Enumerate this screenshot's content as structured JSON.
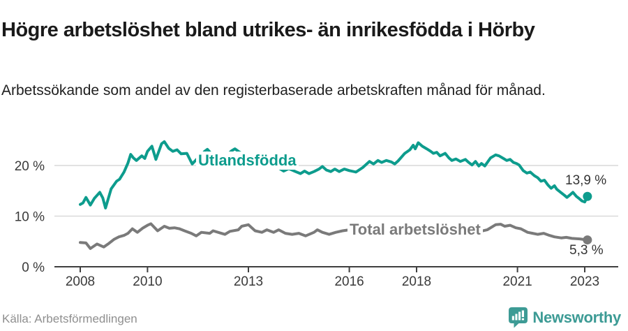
{
  "header": {
    "title": "Högre arbetslöshet bland utrikes- än inrikesfödda i Hörby",
    "subtitle": "Arbetssökande som andel av den registerbaserade arbetskraften månad för månad."
  },
  "footer": {
    "source": "Källa: Arbetsförmedlingen",
    "brand": "Newsworthy"
  },
  "colors": {
    "foreign_series": "#0d9c8d",
    "total_series": "#7a7a7a",
    "brand_teal": "#3d9b95",
    "grid": "#d9d9d9",
    "axis": "#3f3f3f",
    "tick_label": "#3a3a3a",
    "value_label": "#333333",
    "source_text": "#8f8f8f"
  },
  "chart_data": {
    "type": "line",
    "unit": "% av registerbaserad arbetskraft",
    "x_axis": {
      "range": [
        2007.25,
        2023.75
      ],
      "ticks": [
        {
          "value": 2008,
          "label": "2008"
        },
        {
          "value": 2010,
          "label": "2010"
        },
        {
          "value": 2013,
          "label": "2013"
        },
        {
          "value": 2016,
          "label": "2016"
        },
        {
          "value": 2018,
          "label": "2018"
        },
        {
          "value": 2021,
          "label": "2021"
        },
        {
          "value": 2023,
          "label": "2023"
        }
      ]
    },
    "y_axis": {
      "range": [
        0,
        26.5
      ],
      "ticks": [
        {
          "value": 0,
          "label": "0 %"
        },
        {
          "value": 10,
          "label": "10 %"
        },
        {
          "value": 20,
          "label": "20 %"
        }
      ]
    },
    "series": [
      {
        "name": "Utlandsfödda",
        "color": "#0d9c8d",
        "end_label": "13,9 %",
        "end_value": 13.9,
        "points": [
          [
            2008.0,
            12.3
          ],
          [
            2008.08,
            12.6
          ],
          [
            2008.17,
            13.7
          ],
          [
            2008.3,
            12.2
          ],
          [
            2008.42,
            13.5
          ],
          [
            2008.58,
            14.7
          ],
          [
            2008.67,
            13.6
          ],
          [
            2008.75,
            11.6
          ],
          [
            2008.92,
            15.4
          ],
          [
            2009.08,
            16.9
          ],
          [
            2009.17,
            17.3
          ],
          [
            2009.3,
            18.7
          ],
          [
            2009.42,
            20.5
          ],
          [
            2009.5,
            22.2
          ],
          [
            2009.58,
            21.5
          ],
          [
            2009.67,
            21.0
          ],
          [
            2009.83,
            21.9
          ],
          [
            2009.92,
            21.4
          ],
          [
            2010.0,
            22.8
          ],
          [
            2010.13,
            23.8
          ],
          [
            2010.25,
            21.2
          ],
          [
            2010.42,
            24.3
          ],
          [
            2010.5,
            24.7
          ],
          [
            2010.63,
            23.4
          ],
          [
            2010.75,
            22.8
          ],
          [
            2010.88,
            23.1
          ],
          [
            2011.0,
            22.3
          ],
          [
            2011.17,
            22.4
          ],
          [
            2011.33,
            20.3
          ],
          [
            2011.5,
            21.5
          ],
          [
            2011.6,
            22.0
          ],
          [
            2011.7,
            22.8
          ],
          [
            2011.78,
            23.2
          ],
          [
            2011.9,
            22.3
          ],
          [
            2012.05,
            21.9
          ],
          [
            2012.2,
            22.3
          ],
          [
            2012.35,
            22.0
          ],
          [
            2012.5,
            22.9
          ],
          [
            2012.6,
            23.3
          ],
          [
            2012.72,
            22.7
          ],
          [
            2012.85,
            22.2
          ],
          [
            2013.0,
            21.8
          ],
          [
            2013.15,
            21.3
          ],
          [
            2013.3,
            21.0
          ],
          [
            2013.5,
            20.4
          ],
          [
            2013.7,
            19.9
          ],
          [
            2013.9,
            19.5
          ],
          [
            2014.05,
            18.9
          ],
          [
            2014.2,
            19.4
          ],
          [
            2014.4,
            18.8
          ],
          [
            2014.55,
            18.4
          ],
          [
            2014.67,
            18.9
          ],
          [
            2014.8,
            18.4
          ],
          [
            2014.95,
            18.8
          ],
          [
            2015.1,
            19.3
          ],
          [
            2015.2,
            19.8
          ],
          [
            2015.32,
            19.1
          ],
          [
            2015.45,
            18.8
          ],
          [
            2015.57,
            19.3
          ],
          [
            2015.7,
            18.8
          ],
          [
            2015.85,
            19.3
          ],
          [
            2016.0,
            19.0
          ],
          [
            2016.2,
            18.7
          ],
          [
            2016.4,
            19.6
          ],
          [
            2016.6,
            20.8
          ],
          [
            2016.72,
            20.3
          ],
          [
            2016.85,
            21.0
          ],
          [
            2016.96,
            20.6
          ],
          [
            2017.1,
            21.0
          ],
          [
            2017.25,
            20.7
          ],
          [
            2017.35,
            20.3
          ],
          [
            2017.45,
            20.9
          ],
          [
            2017.65,
            22.4
          ],
          [
            2017.8,
            23.1
          ],
          [
            2017.9,
            24.0
          ],
          [
            2017.96,
            23.3
          ],
          [
            2018.05,
            24.5
          ],
          [
            2018.17,
            23.8
          ],
          [
            2018.3,
            23.3
          ],
          [
            2018.42,
            22.8
          ],
          [
            2018.5,
            22.4
          ],
          [
            2018.6,
            22.6
          ],
          [
            2018.7,
            21.9
          ],
          [
            2018.85,
            22.4
          ],
          [
            2018.96,
            21.5
          ],
          [
            2019.05,
            21.0
          ],
          [
            2019.17,
            21.3
          ],
          [
            2019.3,
            20.8
          ],
          [
            2019.45,
            21.2
          ],
          [
            2019.55,
            20.6
          ],
          [
            2019.65,
            20.1
          ],
          [
            2019.75,
            20.8
          ],
          [
            2019.85,
            19.9
          ],
          [
            2019.93,
            20.4
          ],
          [
            2020.03,
            19.9
          ],
          [
            2020.2,
            21.5
          ],
          [
            2020.35,
            22.1
          ],
          [
            2020.45,
            21.9
          ],
          [
            2020.58,
            21.4
          ],
          [
            2020.68,
            21.0
          ],
          [
            2020.78,
            21.2
          ],
          [
            2020.88,
            20.6
          ],
          [
            2020.97,
            20.4
          ],
          [
            2021.05,
            20.1
          ],
          [
            2021.17,
            19.0
          ],
          [
            2021.28,
            18.5
          ],
          [
            2021.38,
            18.7
          ],
          [
            2021.5,
            18.0
          ],
          [
            2021.6,
            17.6
          ],
          [
            2021.7,
            16.9
          ],
          [
            2021.8,
            17.1
          ],
          [
            2021.9,
            16.2
          ],
          [
            2022.0,
            15.5
          ],
          [
            2022.1,
            16.0
          ],
          [
            2022.17,
            15.3
          ],
          [
            2022.3,
            14.6
          ],
          [
            2022.4,
            14.1
          ],
          [
            2022.47,
            13.7
          ],
          [
            2022.58,
            14.3
          ],
          [
            2022.65,
            14.7
          ],
          [
            2022.75,
            13.9
          ],
          [
            2022.83,
            13.5
          ],
          [
            2022.92,
            13.0
          ],
          [
            2023.0,
            12.8
          ],
          [
            2023.08,
            13.9
          ]
        ]
      },
      {
        "name": "Total arbetslöshet",
        "color": "#7a7a7a",
        "end_label": "5,3 %",
        "end_value": 5.3,
        "points": [
          [
            2008.0,
            4.8
          ],
          [
            2008.17,
            4.7
          ],
          [
            2008.3,
            3.6
          ],
          [
            2008.5,
            4.5
          ],
          [
            2008.7,
            3.9
          ],
          [
            2008.85,
            4.6
          ],
          [
            2009.0,
            5.4
          ],
          [
            2009.15,
            5.9
          ],
          [
            2009.3,
            6.2
          ],
          [
            2009.42,
            6.6
          ],
          [
            2009.55,
            7.5
          ],
          [
            2009.7,
            6.8
          ],
          [
            2009.85,
            7.6
          ],
          [
            2010.0,
            8.2
          ],
          [
            2010.1,
            8.5
          ],
          [
            2010.3,
            7.1
          ],
          [
            2010.5,
            8.0
          ],
          [
            2010.65,
            7.6
          ],
          [
            2010.8,
            7.7
          ],
          [
            2010.95,
            7.5
          ],
          [
            2011.1,
            7.1
          ],
          [
            2011.3,
            6.6
          ],
          [
            2011.45,
            6.1
          ],
          [
            2011.6,
            6.8
          ],
          [
            2011.85,
            6.6
          ],
          [
            2011.95,
            7.1
          ],
          [
            2012.15,
            6.7
          ],
          [
            2012.3,
            6.4
          ],
          [
            2012.45,
            7.0
          ],
          [
            2012.7,
            7.3
          ],
          [
            2012.8,
            8.0
          ],
          [
            2013.0,
            8.3
          ],
          [
            2013.2,
            7.1
          ],
          [
            2013.4,
            6.8
          ],
          [
            2013.55,
            7.3
          ],
          [
            2013.75,
            6.8
          ],
          [
            2013.9,
            7.3
          ],
          [
            2014.1,
            6.6
          ],
          [
            2014.3,
            6.4
          ],
          [
            2014.5,
            6.6
          ],
          [
            2014.7,
            6.1
          ],
          [
            2014.95,
            6.8
          ],
          [
            2015.05,
            7.3
          ],
          [
            2015.2,
            6.8
          ],
          [
            2015.4,
            6.4
          ],
          [
            2015.6,
            6.8
          ],
          [
            2015.8,
            7.1
          ],
          [
            2016.0,
            7.3
          ],
          [
            2016.3,
            7.0
          ],
          [
            2016.6,
            7.2
          ],
          [
            2016.9,
            7.0
          ],
          [
            2017.2,
            7.3
          ],
          [
            2017.5,
            6.9
          ],
          [
            2017.8,
            7.1
          ],
          [
            2018.1,
            6.9
          ],
          [
            2018.4,
            7.0
          ],
          [
            2018.7,
            6.7
          ],
          [
            2019.0,
            6.9
          ],
          [
            2019.3,
            6.6
          ],
          [
            2019.6,
            6.7
          ],
          [
            2019.9,
            7.0
          ],
          [
            2020.1,
            7.3
          ],
          [
            2020.35,
            8.3
          ],
          [
            2020.5,
            8.4
          ],
          [
            2020.62,
            8.0
          ],
          [
            2020.78,
            8.2
          ],
          [
            2020.95,
            7.7
          ],
          [
            2021.1,
            7.5
          ],
          [
            2021.3,
            6.8
          ],
          [
            2021.45,
            6.6
          ],
          [
            2021.6,
            6.4
          ],
          [
            2021.78,
            6.6
          ],
          [
            2021.95,
            6.2
          ],
          [
            2022.1,
            5.9
          ],
          [
            2022.3,
            5.7
          ],
          [
            2022.45,
            5.8
          ],
          [
            2022.62,
            5.6
          ],
          [
            2022.85,
            5.5
          ],
          [
            2023.08,
            5.3
          ]
        ]
      }
    ]
  }
}
